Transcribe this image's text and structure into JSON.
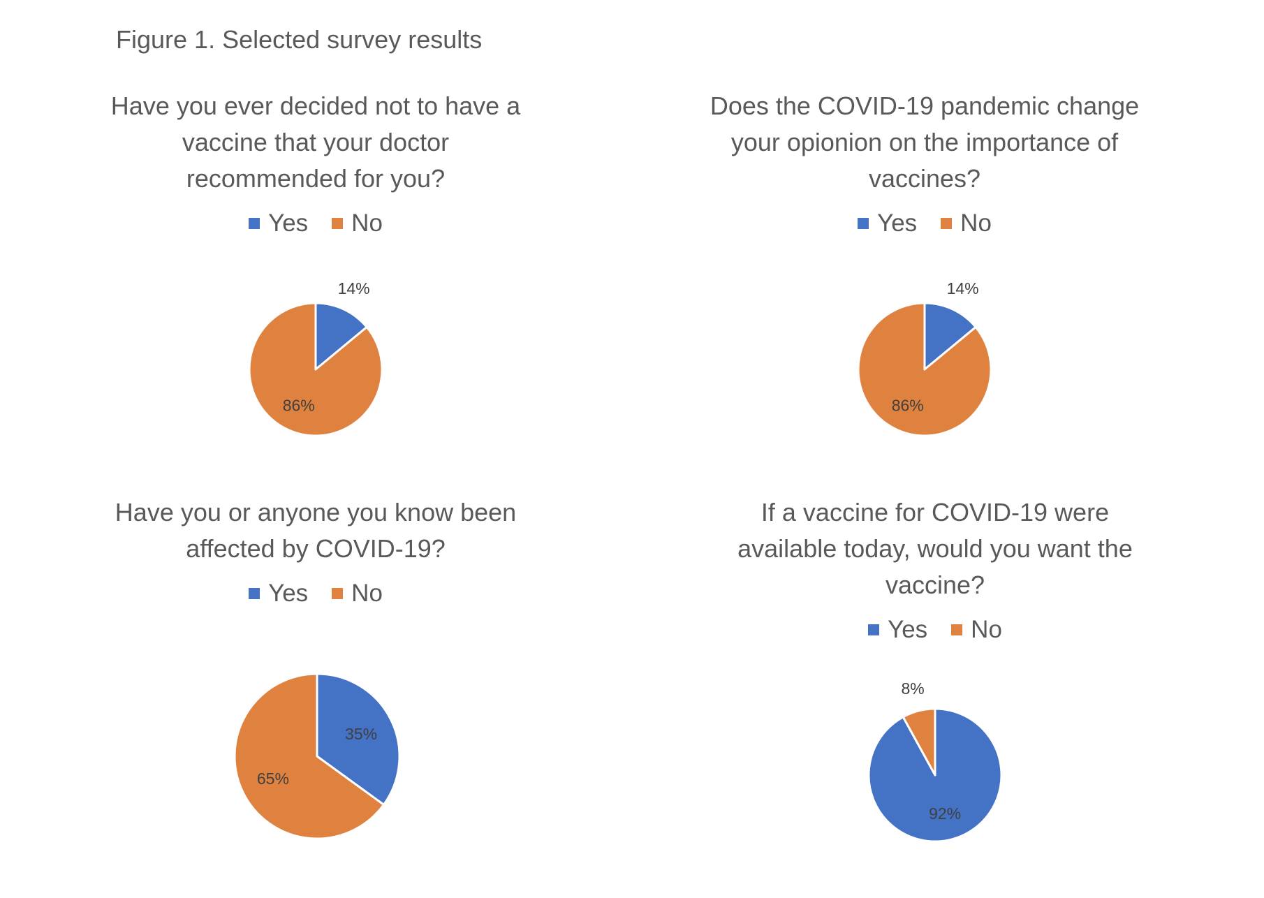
{
  "figure_title": "Figure 1. Selected survey results",
  "colors": {
    "yes": "#4472C4",
    "no": "#E0823F"
  },
  "chart_data": [
    {
      "type": "pie",
      "title": "Have you ever decided not to have a vaccine that your doctor recommended for you?",
      "title_lines": [
        "Have you ever decided not to have a",
        "vaccine that your doctor",
        "recommended for you?"
      ],
      "legend": [
        "Yes",
        "No"
      ],
      "legend_placement": "top",
      "categories": [
        "Yes",
        "No"
      ],
      "values": [
        14,
        86
      ],
      "labels": [
        "14%",
        "86%"
      ]
    },
    {
      "type": "pie",
      "title": "Does the COVID-19 pandemic change your opionion on the importance of vaccines?",
      "title_lines": [
        "Does the COVID-19 pandemic change",
        "your opionion on the importance of",
        "vaccines?"
      ],
      "legend": [
        "Yes",
        "No"
      ],
      "legend_placement": "top",
      "categories": [
        "Yes",
        "No"
      ],
      "values": [
        14,
        86
      ],
      "labels": [
        "14%",
        "86%"
      ]
    },
    {
      "type": "pie",
      "title": "Have you or anyone you know been affected by COVID-19?",
      "title_lines": [
        "Have you or anyone you know been",
        "affected by COVID-19?"
      ],
      "legend": [
        "Yes",
        "No"
      ],
      "legend_placement": "top",
      "categories": [
        "Yes",
        "No"
      ],
      "values": [
        35,
        65
      ],
      "labels": [
        "35%",
        "65%"
      ]
    },
    {
      "type": "pie",
      "title": "If a vaccine for COVID-19 were available today, would you want the vaccine?",
      "title_lines": [
        "If a vaccine for COVID-19 were",
        "available today, would you want the",
        "vaccine?"
      ],
      "legend": [
        "Yes",
        "No"
      ],
      "legend_placement": "top",
      "categories": [
        "Yes",
        "No"
      ],
      "values": [
        92,
        8
      ],
      "labels": [
        "92%",
        "8%"
      ]
    }
  ]
}
